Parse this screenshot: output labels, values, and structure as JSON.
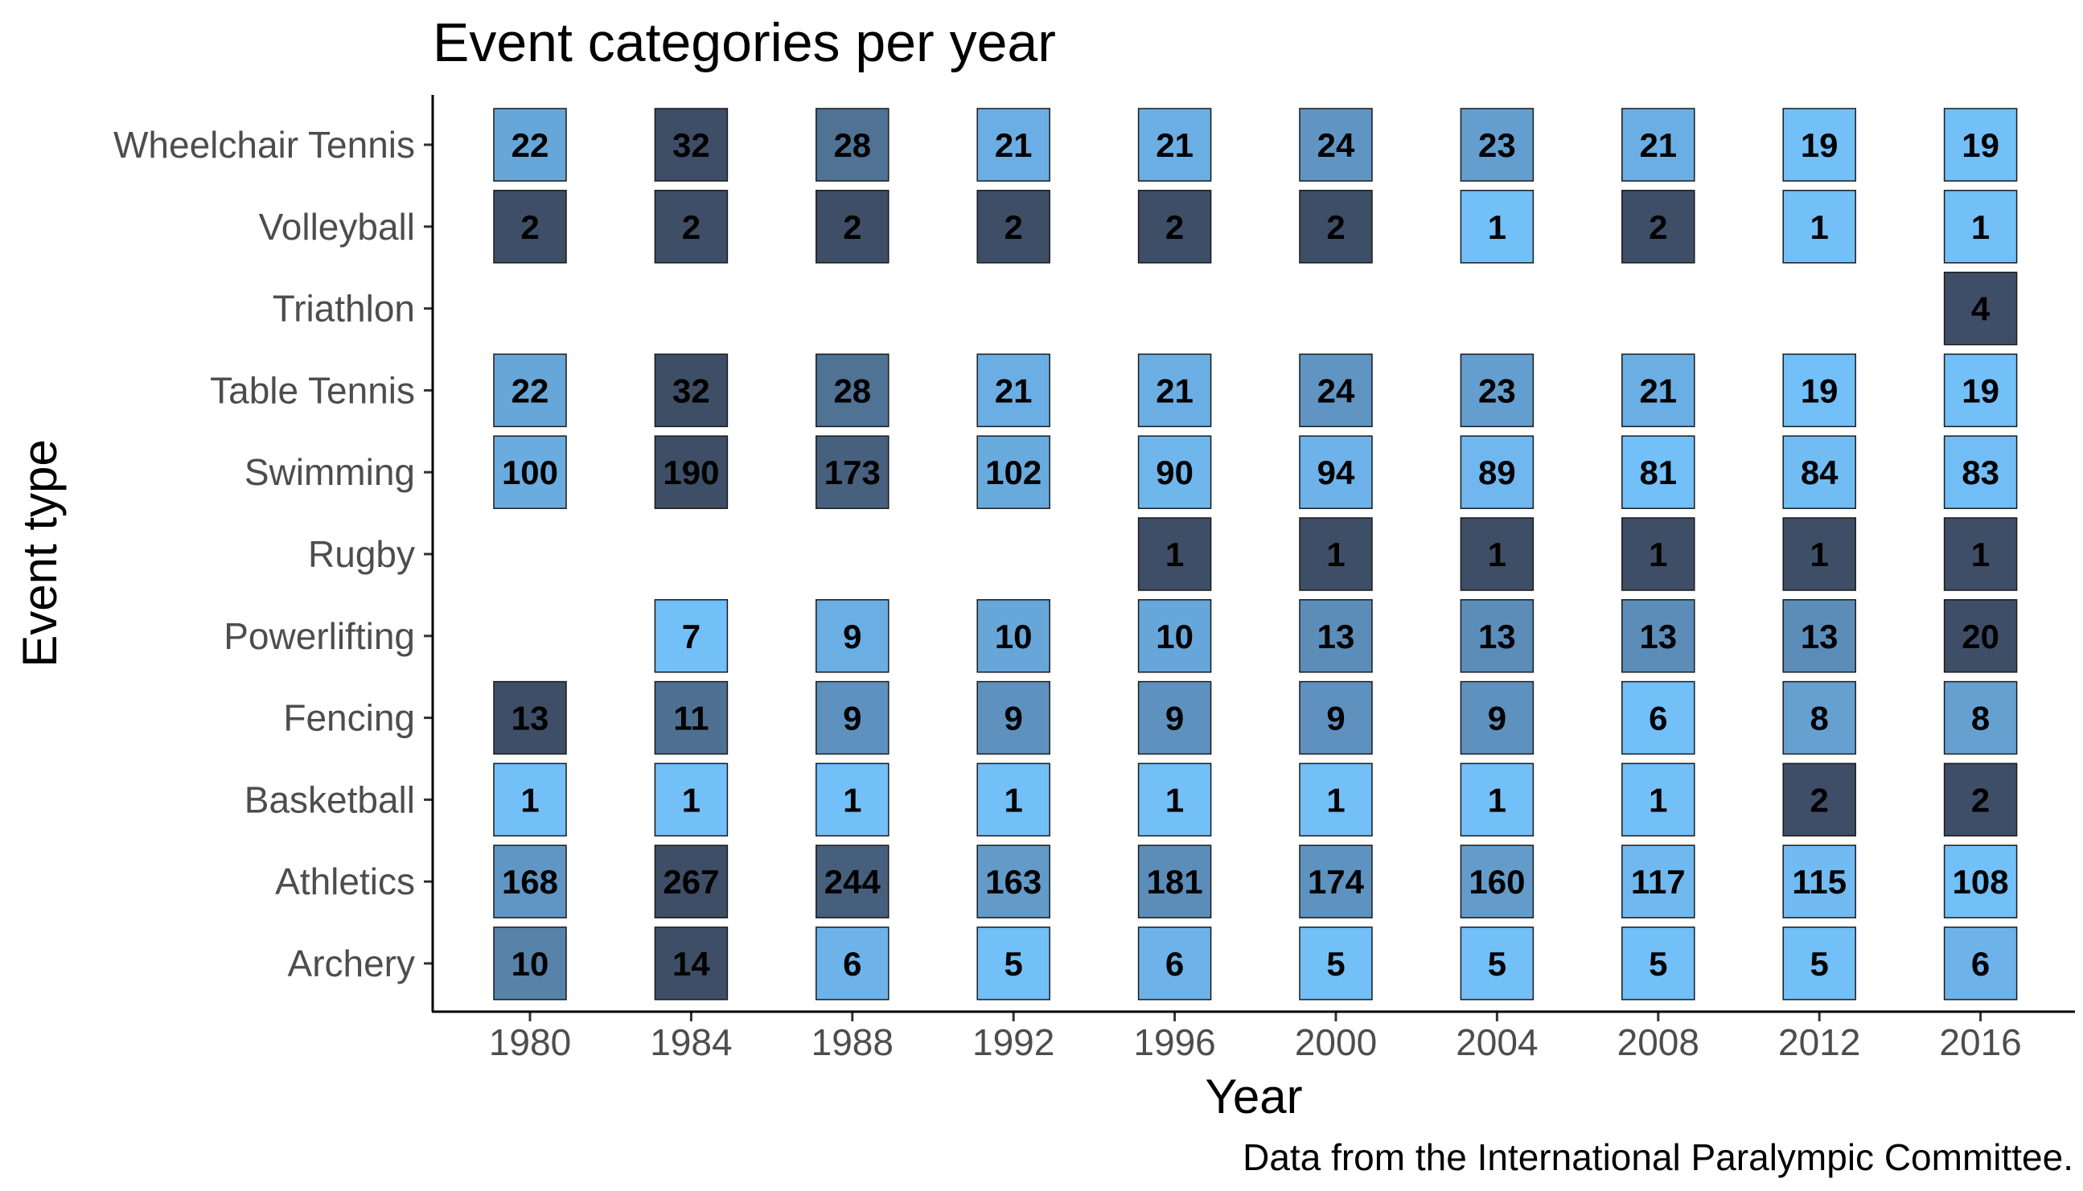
{
  "chart_data": {
    "type": "heatmap",
    "title": "Event categories per year",
    "xlabel": "Year",
    "ylabel": "Event type",
    "caption": "Data from the International Paralympic Committee.",
    "x": [
      "1980",
      "1984",
      "1988",
      "1992",
      "1996",
      "2000",
      "2004",
      "2008",
      "2012",
      "2016"
    ],
    "y": [
      "Archery",
      "Athletics",
      "Basketball",
      "Fencing",
      "Powerlifting",
      "Rugby",
      "Swimming",
      "Table Tennis",
      "Triathlon",
      "Volleyball",
      "Wheelchair Tennis"
    ],
    "values": [
      [
        10,
        14,
        6,
        5,
        6,
        5,
        5,
        5,
        5,
        6
      ],
      [
        168,
        267,
        244,
        163,
        181,
        174,
        160,
        117,
        115,
        108
      ],
      [
        1,
        1,
        1,
        1,
        1,
        1,
        1,
        1,
        2,
        2
      ],
      [
        13,
        11,
        9,
        9,
        9,
        9,
        9,
        6,
        8,
        8
      ],
      [
        null,
        7,
        9,
        10,
        10,
        13,
        13,
        13,
        13,
        20
      ],
      [
        null,
        null,
        null,
        null,
        1,
        1,
        1,
        1,
        1,
        1
      ],
      [
        100,
        190,
        173,
        102,
        90,
        94,
        89,
        81,
        84,
        83
      ],
      [
        22,
        32,
        28,
        21,
        21,
        24,
        23,
        21,
        19,
        19
      ],
      [
        null,
        null,
        null,
        null,
        null,
        null,
        null,
        null,
        null,
        4
      ],
      [
        2,
        2,
        2,
        2,
        2,
        2,
        1,
        2,
        1,
        1
      ],
      [
        22,
        32,
        28,
        21,
        21,
        24,
        23,
        21,
        19,
        19
      ]
    ],
    "colors": {
      "low": "#73bff8",
      "mid": "#5a89b3",
      "high": "#3e4e66"
    },
    "grid": false,
    "legend": "none"
  }
}
